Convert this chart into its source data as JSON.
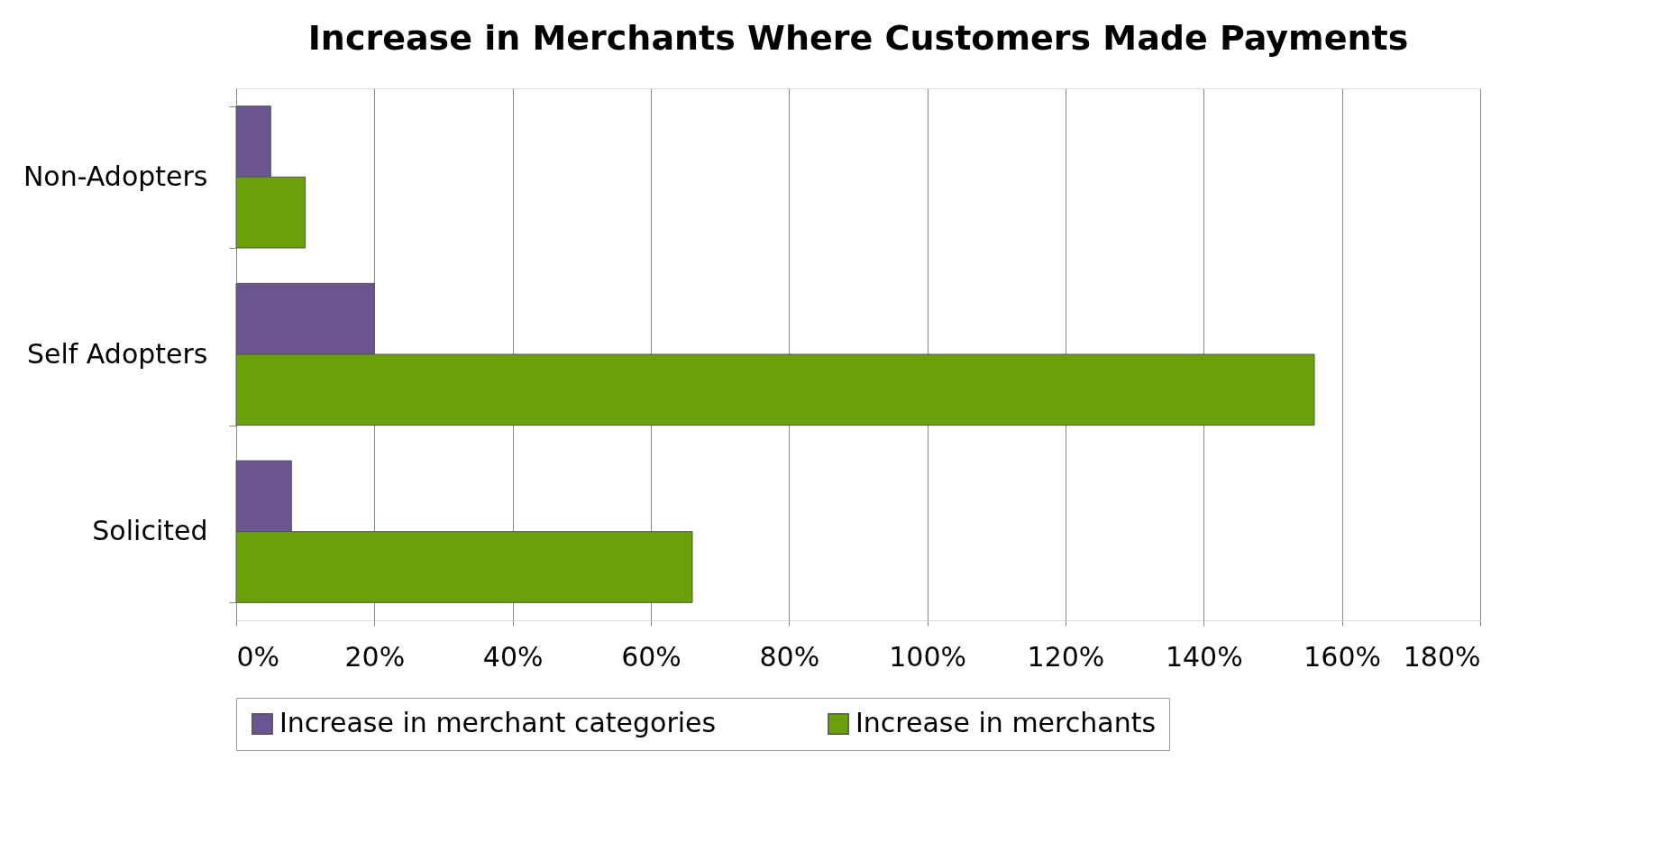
{
  "chart_data": {
    "type": "bar",
    "orientation": "horizontal",
    "title": "Increase in Merchants Where Customers Made Payments",
    "categories": [
      "Non-Adopters",
      "Self Adopters",
      "Solicited"
    ],
    "series": [
      {
        "name": "Increase in merchant categories",
        "color": "#6b5590",
        "values": [
          5,
          20,
          8
        ]
      },
      {
        "name": "Increase in merchants",
        "color": "#6aa10a",
        "values": [
          10,
          156,
          66
        ]
      }
    ],
    "xlim": [
      0,
      180
    ],
    "xticks": [
      {
        "value": 0,
        "label": "0%"
      },
      {
        "value": 20,
        "label": "20%"
      },
      {
        "value": 40,
        "label": "40%"
      },
      {
        "value": 60,
        "label": "60%"
      },
      {
        "value": 80,
        "label": "80%"
      },
      {
        "value": 100,
        "label": "100%"
      },
      {
        "value": 120,
        "label": "120%"
      },
      {
        "value": 140,
        "label": "140%"
      },
      {
        "value": 160,
        "label": "160%"
      },
      {
        "value": 180,
        "label": "180%"
      }
    ],
    "grid": "x",
    "legend": "bottom"
  }
}
